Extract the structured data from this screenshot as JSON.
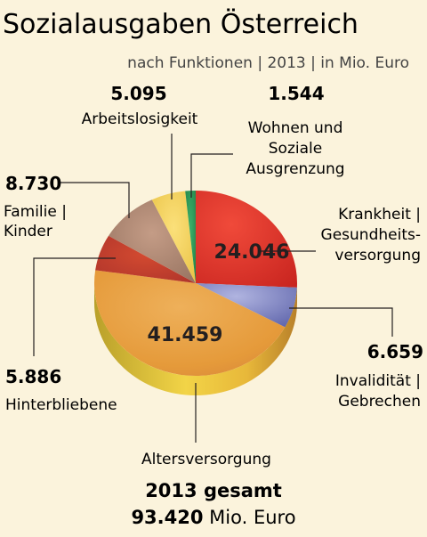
{
  "chart_data": {
    "type": "pie",
    "title": "Sozialausgaben Österreich",
    "subtitle": "nach Funktionen | 2013 | in Mio. Euro",
    "slices": [
      {
        "value_label": "24.046",
        "value": 24046,
        "label_lines": [
          "Krankheit |",
          "Gesundheits-",
          "versorgung"
        ],
        "color": "#e8352c"
      },
      {
        "value_label": "6.659",
        "value": 6659,
        "label_lines": [
          "Invalidität |",
          "Gebrechen"
        ],
        "color": "#8f93cc"
      },
      {
        "value_label": "41.459",
        "value": 41459,
        "label_lines": [
          "Altersversorgung"
        ],
        "color": "#e9a23a"
      },
      {
        "value_label": "5.886",
        "value": 5886,
        "label_lines": [
          "Hinterbliebene"
        ],
        "color": "#c8402c"
      },
      {
        "value_label": "8.730",
        "value": 8730,
        "label_lines": [
          "Familie |",
          "Kinder"
        ],
        "color": "#b08a74"
      },
      {
        "value_label": "5.095",
        "value": 5095,
        "label_lines": [
          "Arbeitslosigkeit"
        ],
        "color": "#f4d45c"
      },
      {
        "value_label": "1.544",
        "value": 1544,
        "label_lines": [
          "Wohnen und",
          "Soziale",
          "Ausgrenzung"
        ],
        "color": "#2e9a5a"
      }
    ],
    "total": {
      "line1": "2013 gesamt",
      "value": "93.420",
      "unit": "Mio. Euro"
    }
  }
}
